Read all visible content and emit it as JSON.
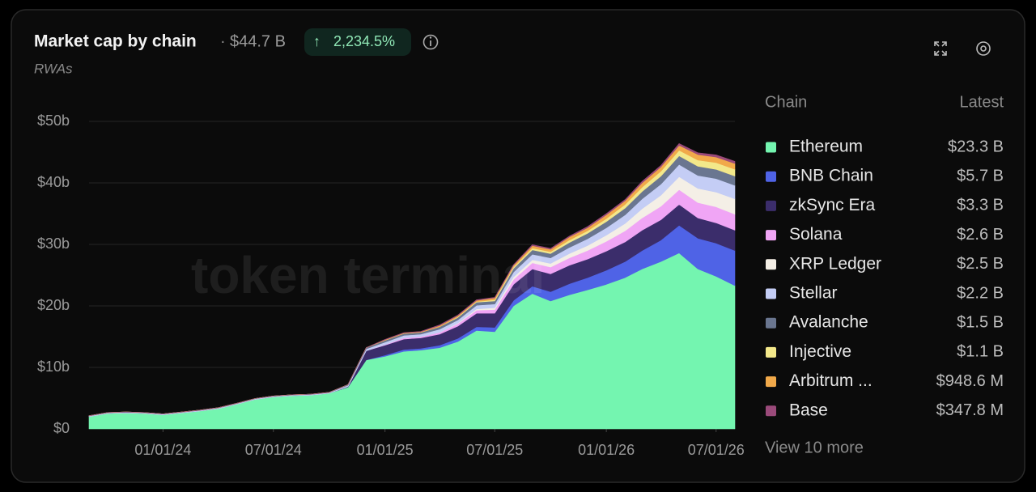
{
  "header": {
    "total": "$44.7 B",
    "change": "2,234.5%"
  },
  "legend": {
    "name_header": "Chain",
    "value_header": "Latest",
    "more": "View 10 more"
  },
  "watermark": "token terminal",
  "chart_data": {
    "type": "stacked-area",
    "title": "Market cap by chain",
    "subtitle": "RWAs",
    "x": [
      "09/01/23",
      "10/01/23",
      "11/01/23",
      "12/01/23",
      "01/01/24",
      "02/01/24",
      "03/01/24",
      "04/01/24",
      "05/01/24",
      "06/01/24",
      "07/01/24",
      "08/01/24",
      "09/01/24",
      "10/01/24",
      "11/01/24",
      "12/01/24",
      "01/01/25",
      "02/01/25",
      "03/01/25",
      "04/01/25",
      "05/01/25",
      "06/01/25",
      "07/01/25",
      "08/01/25",
      "09/01/25",
      "10/01/25",
      "11/01/25",
      "12/01/25",
      "01/01/26",
      "02/01/26",
      "03/01/26",
      "04/01/26",
      "05/01/26",
      "06/01/26",
      "07/01/26",
      "08/01/26"
    ],
    "xlim": [
      "09/01/23",
      "08/01/26"
    ],
    "xticks": [
      "01/01/24",
      "07/01/24",
      "01/01/25",
      "07/01/25",
      "01/01/26",
      "07/01/26"
    ],
    "ylim": [
      0,
      55
    ],
    "yticks": [
      {
        "value": 0,
        "label": "$0"
      },
      {
        "value": 10,
        "label": "$10b"
      },
      {
        "value": 20,
        "label": "$20b"
      },
      {
        "value": 30,
        "label": "$30b"
      },
      {
        "value": 40,
        "label": "$40b"
      },
      {
        "value": 50,
        "label": "$50b"
      }
    ],
    "grid": true,
    "series": [
      {
        "name": "Ethereum",
        "color": "#74f5b0",
        "latest": 23.3,
        "latest_label": "$23.3 B",
        "values": [
          2.0,
          2.5,
          2.6,
          2.5,
          2.3,
          2.6,
          2.9,
          3.3,
          4.0,
          4.8,
          5.2,
          5.4,
          5.5,
          5.8,
          6.8,
          11.2,
          11.8,
          12.6,
          12.8,
          13.2,
          14.2,
          16.0,
          15.8,
          20.0,
          22.0,
          20.8,
          21.8,
          22.6,
          23.5,
          24.6,
          26.0,
          27.2,
          28.6,
          26.0,
          24.8,
          23.3
        ]
      },
      {
        "name": "BNB Chain",
        "color": "#4f63e6",
        "latest": 5.7,
        "latest_label": "$5.7 B",
        "values": [
          0,
          0,
          0,
          0,
          0,
          0,
          0,
          0,
          0,
          0,
          0,
          0,
          0,
          0,
          0,
          0,
          0.2,
          0.3,
          0.3,
          0.4,
          0.5,
          0.6,
          0.7,
          0.9,
          1.2,
          1.5,
          1.8,
          2.0,
          2.3,
          2.6,
          3.0,
          3.5,
          4.5,
          5.0,
          5.4,
          5.7
        ]
      },
      {
        "name": "zkSync Era",
        "color": "#3b2d6b",
        "latest": 3.3,
        "latest_label": "$3.3 B",
        "values": [
          0,
          0,
          0,
          0,
          0,
          0,
          0,
          0,
          0,
          0,
          0,
          0,
          0,
          0,
          0.1,
          1.5,
          1.6,
          1.7,
          1.7,
          1.8,
          2.0,
          2.2,
          2.3,
          2.6,
          2.8,
          2.9,
          3.0,
          3.0,
          3.1,
          3.2,
          3.3,
          3.3,
          3.4,
          3.3,
          3.3,
          3.3
        ]
      },
      {
        "name": "Solana",
        "color": "#f0a5f5",
        "latest": 2.6,
        "latest_label": "$2.6 B",
        "values": [
          0,
          0,
          0,
          0,
          0,
          0,
          0,
          0,
          0,
          0,
          0,
          0,
          0,
          0,
          0,
          0,
          0.1,
          0.2,
          0.2,
          0.3,
          0.4,
          0.5,
          0.6,
          0.8,
          1.0,
          1.1,
          1.2,
          1.4,
          1.6,
          1.8,
          2.0,
          2.2,
          2.4,
          2.5,
          2.6,
          2.6
        ]
      },
      {
        "name": "XRP Ledger",
        "color": "#f4efe6",
        "latest": 2.5,
        "latest_label": "$2.5 B",
        "values": [
          0,
          0,
          0,
          0,
          0,
          0,
          0,
          0,
          0,
          0,
          0,
          0,
          0,
          0,
          0,
          0,
          0,
          0,
          0,
          0,
          0.1,
          0.2,
          0.3,
          0.4,
          0.5,
          0.6,
          0.7,
          0.8,
          1.0,
          1.2,
          1.5,
          1.8,
          2.1,
          2.3,
          2.4,
          2.5
        ]
      },
      {
        "name": "Stellar",
        "color": "#c4cdf5",
        "latest": 2.2,
        "latest_label": "$2.2 B",
        "values": [
          0.1,
          0.1,
          0.1,
          0.1,
          0.1,
          0.1,
          0.1,
          0.1,
          0.1,
          0.1,
          0.1,
          0.1,
          0.1,
          0.1,
          0.2,
          0.3,
          0.4,
          0.4,
          0.4,
          0.5,
          0.5,
          0.6,
          0.6,
          0.8,
          0.9,
          0.9,
          1.0,
          1.1,
          1.2,
          1.4,
          1.6,
          1.8,
          2.0,
          2.1,
          2.2,
          2.2
        ]
      },
      {
        "name": "Avalanche",
        "color": "#6a7690",
        "latest": 1.5,
        "latest_label": "$1.5 B",
        "values": [
          0.05,
          0.05,
          0.05,
          0.05,
          0.05,
          0.05,
          0.05,
          0.05,
          0.05,
          0.05,
          0.05,
          0.05,
          0.05,
          0.05,
          0.1,
          0.2,
          0.3,
          0.3,
          0.3,
          0.4,
          0.4,
          0.5,
          0.5,
          0.6,
          0.7,
          0.7,
          0.8,
          0.9,
          1.0,
          1.1,
          1.2,
          1.3,
          1.4,
          1.5,
          1.5,
          1.5
        ]
      },
      {
        "name": "Injective",
        "color": "#f3e88a",
        "latest": 1.1,
        "latest_label": "$1.1 B",
        "values": [
          0,
          0,
          0,
          0,
          0,
          0,
          0,
          0,
          0,
          0,
          0,
          0,
          0,
          0,
          0,
          0,
          0,
          0,
          0,
          0,
          0.1,
          0.1,
          0.2,
          0.2,
          0.3,
          0.3,
          0.4,
          0.4,
          0.5,
          0.6,
          0.7,
          0.8,
          0.9,
          1.0,
          1.1,
          1.1
        ]
      },
      {
        "name": "Arbitrum ...",
        "color": "#f1a94a",
        "latest": 0.9486,
        "latest_label": "$948.6 M",
        "values": [
          0,
          0,
          0,
          0,
          0,
          0,
          0,
          0,
          0,
          0,
          0,
          0,
          0,
          0,
          0,
          0,
          0.1,
          0.1,
          0.1,
          0.2,
          0.2,
          0.2,
          0.3,
          0.3,
          0.4,
          0.4,
          0.5,
          0.5,
          0.6,
          0.6,
          0.7,
          0.7,
          0.8,
          0.9,
          0.9,
          0.9486
        ]
      },
      {
        "name": "Base",
        "color": "#9a4a7a",
        "latest": 0.3478,
        "latest_label": "$347.8 M",
        "values": [
          0,
          0,
          0,
          0,
          0,
          0,
          0,
          0,
          0,
          0,
          0,
          0,
          0,
          0,
          0,
          0,
          0.05,
          0.05,
          0.05,
          0.1,
          0.1,
          0.1,
          0.1,
          0.1,
          0.15,
          0.15,
          0.15,
          0.2,
          0.2,
          0.2,
          0.25,
          0.25,
          0.3,
          0.3,
          0.35,
          0.3478
        ]
      }
    ]
  }
}
